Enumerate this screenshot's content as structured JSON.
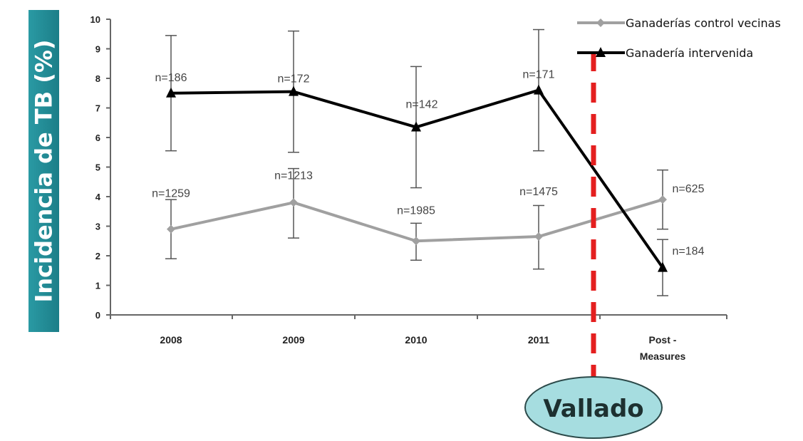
{
  "y_axis_label": "Incidencia de TB (%)",
  "chart_data": {
    "type": "line",
    "categories": [
      "2008",
      "2009",
      "2010",
      "2011",
      "Post -\nMeasures"
    ],
    "ylim": [
      0,
      10
    ],
    "yticks": [
      0,
      1,
      2,
      3,
      4,
      5,
      6,
      7,
      8,
      9,
      10
    ],
    "series": [
      {
        "name": "Ganaderías control vecinas",
        "color": "#a0a0a0",
        "marker": "diamond",
        "values": [
          2.9,
          3.8,
          2.5,
          2.65,
          3.9
        ],
        "err_low": [
          1.9,
          2.6,
          1.85,
          1.55,
          2.9
        ],
        "err_high": [
          3.9,
          4.95,
          3.1,
          3.7,
          4.9
        ],
        "n_labels": [
          "n=1259",
          "n=1213",
          "n=1985",
          "n=1475",
          "n=625"
        ]
      },
      {
        "name": "Ganadería intervenida",
        "color": "#000000",
        "marker": "triangle",
        "values": [
          7.5,
          7.55,
          6.35,
          7.6,
          1.6
        ],
        "err_low": [
          5.55,
          5.5,
          4.3,
          5.55,
          0.65
        ],
        "err_high": [
          9.45,
          9.6,
          8.4,
          9.65,
          2.55
        ],
        "n_labels": [
          "n=186",
          "n=172",
          "n=142",
          "n=171",
          "n=184"
        ]
      }
    ],
    "legend_position": "top-right"
  },
  "annotation": {
    "label": "Vallado",
    "line_color": "#e41f1f",
    "fill_color": "#a6dde0"
  }
}
